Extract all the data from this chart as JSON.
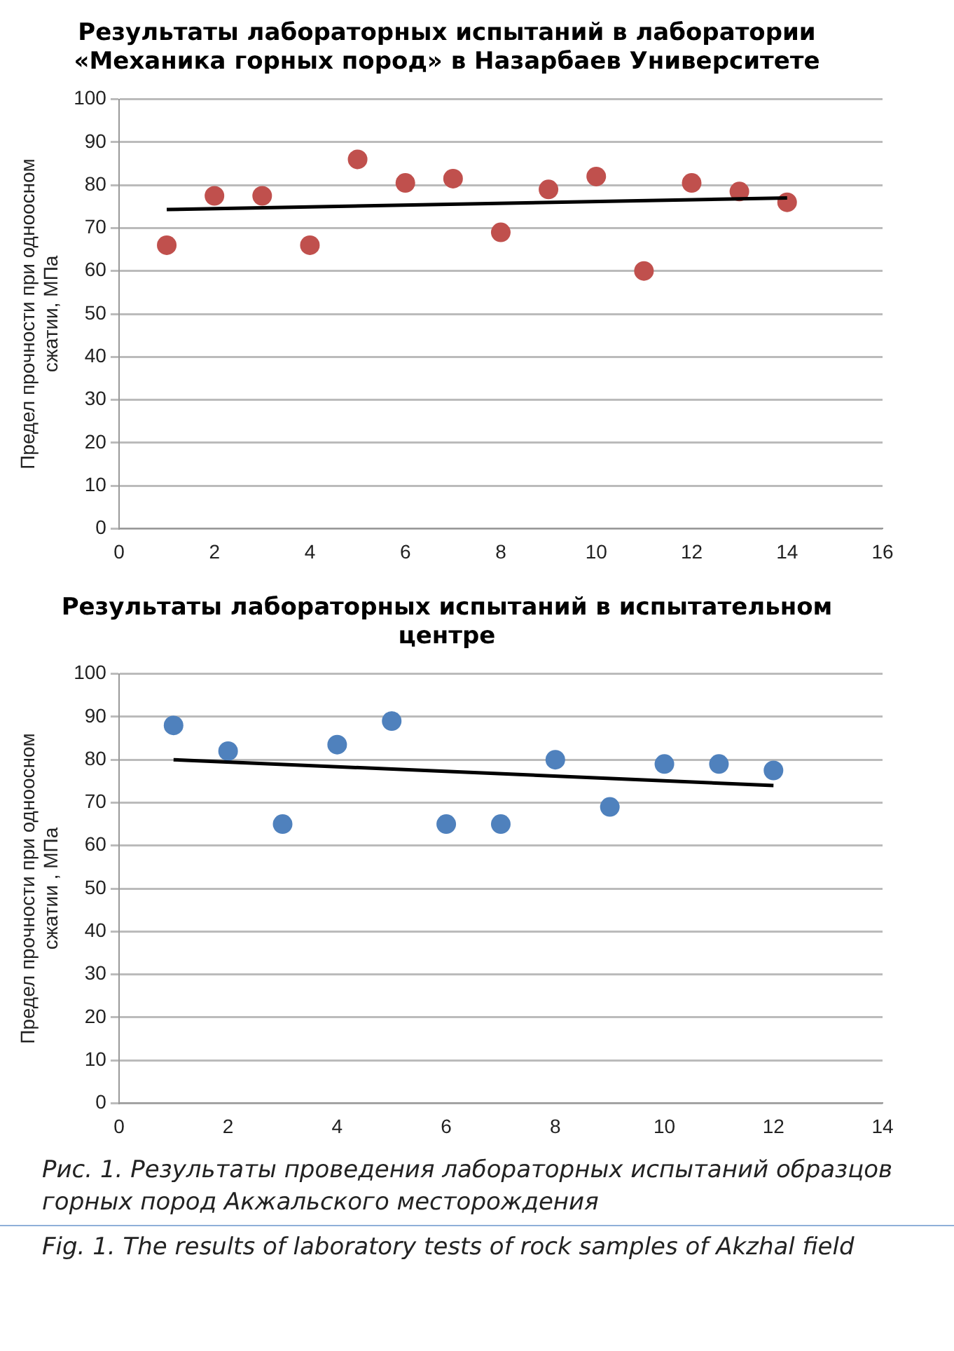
{
  "chart_data": [
    {
      "type": "scatter",
      "title": "Результаты лабораторных испытаний в лаборатории «Механика горных пород» в Назарбаев Университете",
      "ylabel": "Предел прочности при одноосном сжатии, МПа",
      "xlim": [
        0,
        16
      ],
      "xticks": [
        0,
        2,
        4,
        6,
        8,
        10,
        12,
        14,
        16
      ],
      "ylim": [
        0,
        100
      ],
      "yticks": [
        0,
        10,
        20,
        30,
        40,
        50,
        60,
        70,
        80,
        90,
        100
      ],
      "grid": "y",
      "legend": false,
      "marker": "circle",
      "series": [
        {
          "color": "#c0504d",
          "x": [
            1,
            2,
            3,
            4,
            5,
            6,
            7,
            8,
            9,
            10,
            11,
            12,
            13,
            14
          ],
          "values": [
            66,
            77.5,
            77.5,
            66,
            86,
            80.5,
            81.5,
            69,
            79,
            82,
            60,
            80.5,
            78.5,
            76
          ]
        },
        {
          "type": "line",
          "color": "#000000",
          "marker": "none",
          "x": [
            1,
            14
          ],
          "values": [
            74.3,
            77
          ]
        }
      ]
    },
    {
      "type": "scatter",
      "title": "Результаты лабораторных испытаний в испытательном центре",
      "ylabel": "Предел прочности при одноосном сжатии , МПа",
      "xlim": [
        0,
        14
      ],
      "xticks": [
        0,
        2,
        4,
        6,
        8,
        10,
        12,
        14
      ],
      "ylim": [
        0,
        100
      ],
      "yticks": [
        0,
        10,
        20,
        30,
        40,
        50,
        60,
        70,
        80,
        90,
        100
      ],
      "grid": "y",
      "legend": false,
      "marker": "circle",
      "series": [
        {
          "color": "#4f81bd",
          "x": [
            1,
            2,
            3,
            4,
            5,
            6,
            7,
            8,
            9,
            10,
            11,
            12
          ],
          "values": [
            88,
            82,
            65,
            83.5,
            89,
            65,
            65,
            80,
            69,
            79,
            79,
            77.5
          ]
        },
        {
          "type": "line",
          "color": "#000000",
          "marker": "none",
          "x": [
            1,
            12
          ],
          "values": [
            80,
            74
          ]
        }
      ],
      "annotations": [
        "Рис. 1. Результаты проведения лабораторных испытаний образцов горных пород Акжальского месторождения",
        "Fig. 1. The results of laboratory tests of rock samples of Akzhal field"
      ]
    }
  ]
}
